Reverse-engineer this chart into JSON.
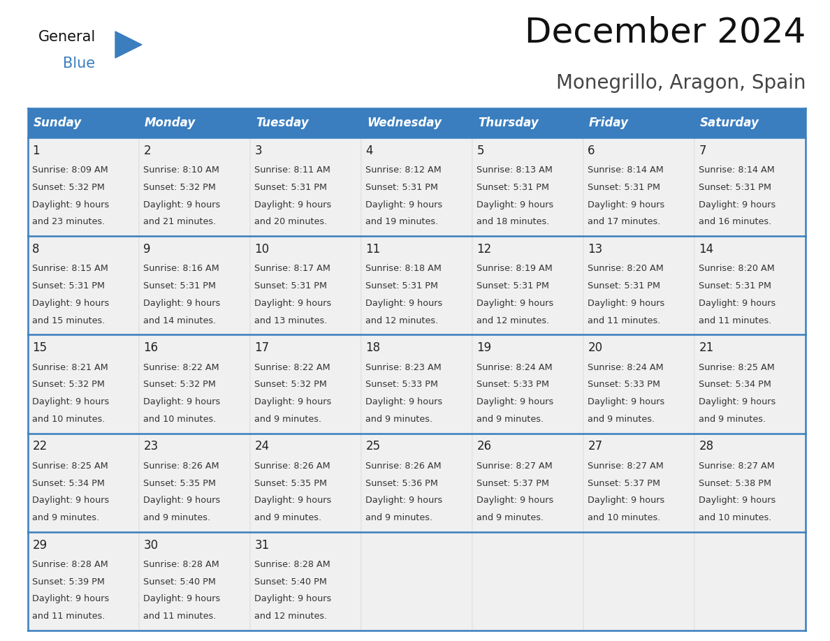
{
  "title": "December 2024",
  "subtitle": "Monegrillo, Aragon, Spain",
  "header_color": "#3a7ebf",
  "header_text_color": "#ffffff",
  "day_names": [
    "Sunday",
    "Monday",
    "Tuesday",
    "Wednesday",
    "Thursday",
    "Friday",
    "Saturday"
  ],
  "bg_color": "#ffffff",
  "cell_bg_color": "#f0f0f0",
  "border_color": "#3a7ebf",
  "day_num_color": "#222222",
  "text_color": "#333333",
  "weeks": [
    [
      {
        "day": 1,
        "sunrise": "8:09 AM",
        "sunset": "5:32 PM",
        "daylight_min": "23 minutes"
      },
      {
        "day": 2,
        "sunrise": "8:10 AM",
        "sunset": "5:32 PM",
        "daylight_min": "21 minutes"
      },
      {
        "day": 3,
        "sunrise": "8:11 AM",
        "sunset": "5:31 PM",
        "daylight_min": "20 minutes"
      },
      {
        "day": 4,
        "sunrise": "8:12 AM",
        "sunset": "5:31 PM",
        "daylight_min": "19 minutes"
      },
      {
        "day": 5,
        "sunrise": "8:13 AM",
        "sunset": "5:31 PM",
        "daylight_min": "18 minutes"
      },
      {
        "day": 6,
        "sunrise": "8:14 AM",
        "sunset": "5:31 PM",
        "daylight_min": "17 minutes"
      },
      {
        "day": 7,
        "sunrise": "8:14 AM",
        "sunset": "5:31 PM",
        "daylight_min": "16 minutes"
      }
    ],
    [
      {
        "day": 8,
        "sunrise": "8:15 AM",
        "sunset": "5:31 PM",
        "daylight_min": "15 minutes"
      },
      {
        "day": 9,
        "sunrise": "8:16 AM",
        "sunset": "5:31 PM",
        "daylight_min": "14 minutes"
      },
      {
        "day": 10,
        "sunrise": "8:17 AM",
        "sunset": "5:31 PM",
        "daylight_min": "13 minutes"
      },
      {
        "day": 11,
        "sunrise": "8:18 AM",
        "sunset": "5:31 PM",
        "daylight_min": "12 minutes"
      },
      {
        "day": 12,
        "sunrise": "8:19 AM",
        "sunset": "5:31 PM",
        "daylight_min": "12 minutes"
      },
      {
        "day": 13,
        "sunrise": "8:20 AM",
        "sunset": "5:31 PM",
        "daylight_min": "11 minutes"
      },
      {
        "day": 14,
        "sunrise": "8:20 AM",
        "sunset": "5:31 PM",
        "daylight_min": "11 minutes"
      }
    ],
    [
      {
        "day": 15,
        "sunrise": "8:21 AM",
        "sunset": "5:32 PM",
        "daylight_min": "10 minutes"
      },
      {
        "day": 16,
        "sunrise": "8:22 AM",
        "sunset": "5:32 PM",
        "daylight_min": "10 minutes"
      },
      {
        "day": 17,
        "sunrise": "8:22 AM",
        "sunset": "5:32 PM",
        "daylight_min": "9 minutes"
      },
      {
        "day": 18,
        "sunrise": "8:23 AM",
        "sunset": "5:33 PM",
        "daylight_min": "9 minutes"
      },
      {
        "day": 19,
        "sunrise": "8:24 AM",
        "sunset": "5:33 PM",
        "daylight_min": "9 minutes"
      },
      {
        "day": 20,
        "sunrise": "8:24 AM",
        "sunset": "5:33 PM",
        "daylight_min": "9 minutes"
      },
      {
        "day": 21,
        "sunrise": "8:25 AM",
        "sunset": "5:34 PM",
        "daylight_min": "9 minutes"
      }
    ],
    [
      {
        "day": 22,
        "sunrise": "8:25 AM",
        "sunset": "5:34 PM",
        "daylight_min": "9 minutes"
      },
      {
        "day": 23,
        "sunrise": "8:26 AM",
        "sunset": "5:35 PM",
        "daylight_min": "9 minutes"
      },
      {
        "day": 24,
        "sunrise": "8:26 AM",
        "sunset": "5:35 PM",
        "daylight_min": "9 minutes"
      },
      {
        "day": 25,
        "sunrise": "8:26 AM",
        "sunset": "5:36 PM",
        "daylight_min": "9 minutes"
      },
      {
        "day": 26,
        "sunrise": "8:27 AM",
        "sunset": "5:37 PM",
        "daylight_min": "9 minutes"
      },
      {
        "day": 27,
        "sunrise": "8:27 AM",
        "sunset": "5:37 PM",
        "daylight_min": "10 minutes"
      },
      {
        "day": 28,
        "sunrise": "8:27 AM",
        "sunset": "5:38 PM",
        "daylight_min": "10 minutes"
      }
    ],
    [
      {
        "day": 29,
        "sunrise": "8:28 AM",
        "sunset": "5:39 PM",
        "daylight_min": "11 minutes"
      },
      {
        "day": 30,
        "sunrise": "8:28 AM",
        "sunset": "5:40 PM",
        "daylight_min": "11 minutes"
      },
      {
        "day": 31,
        "sunrise": "8:28 AM",
        "sunset": "5:40 PM",
        "daylight_min": "12 minutes"
      },
      null,
      null,
      null,
      null
    ]
  ],
  "logo_triangle_color": "#3a7ebf",
  "title_fontsize": 36,
  "subtitle_fontsize": 20,
  "header_fontsize": 12,
  "day_num_fontsize": 12,
  "cell_text_fontsize": 9.2
}
